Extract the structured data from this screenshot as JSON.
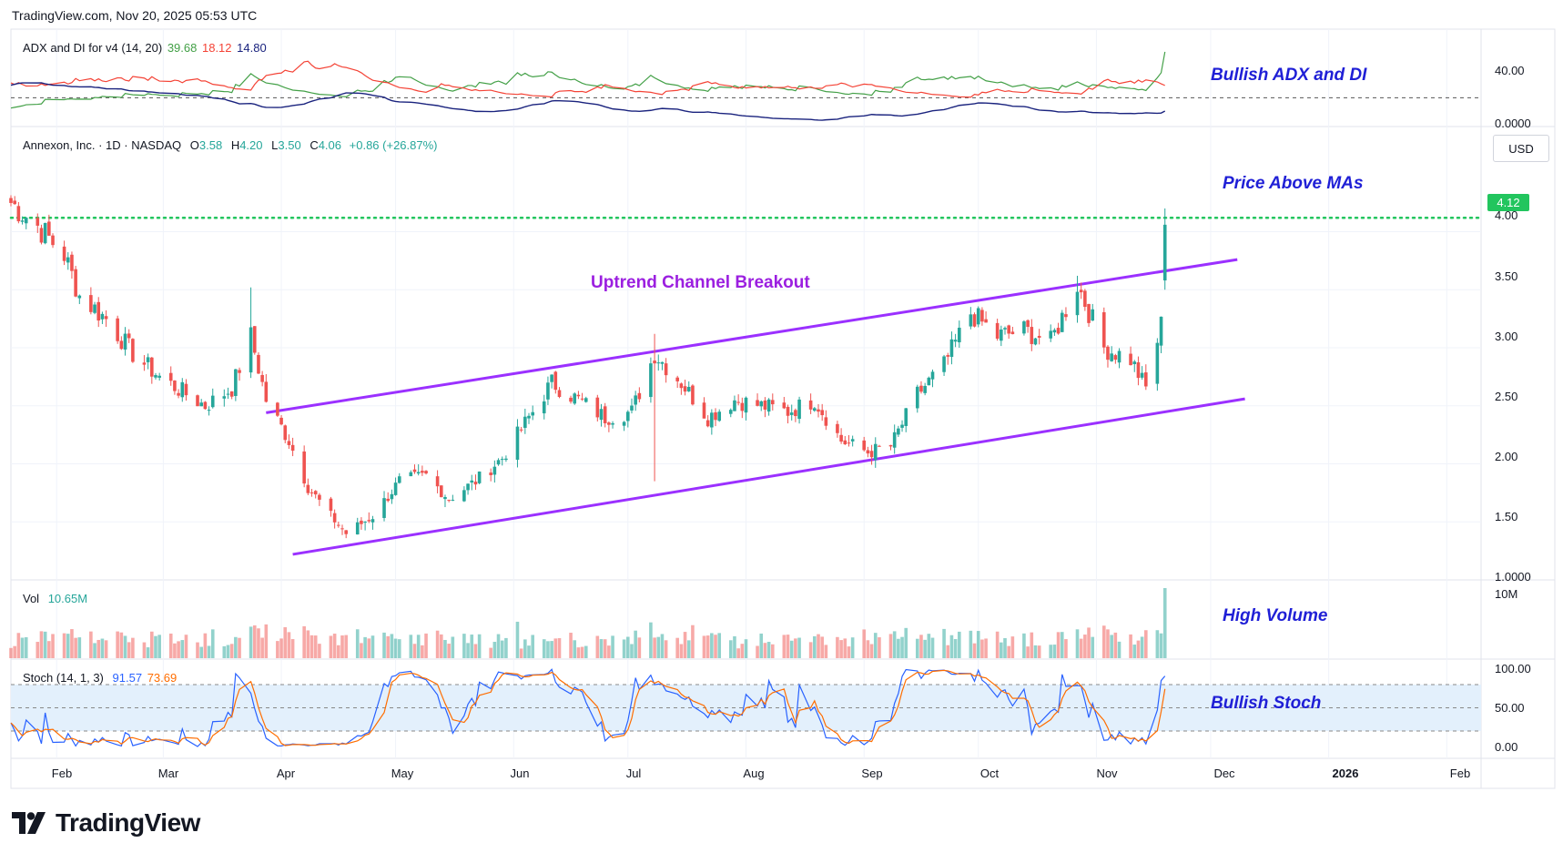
{
  "header": {
    "source": "TradingView.com, Nov 20, 2025 05:53 UTC"
  },
  "adx_pane": {
    "label": "ADX and DI for v4 (14, 20)",
    "plus_di": "39.68",
    "minus_di": "18.12",
    "adx": "14.80",
    "y_ticks": [
      "40.00",
      "0.0000"
    ],
    "annotation": "Bullish ADX and DI",
    "colors": {
      "plus_di": "#43a047",
      "minus_di": "#f44336",
      "adx": "#1a237e"
    }
  },
  "price_pane": {
    "symbol_line": "Annexon, Inc. · 1D · NASDAQ",
    "o_label": "O",
    "o": "3.58",
    "h_label": "H",
    "h": "4.20",
    "l_label": "L",
    "l": "3.50",
    "c_label": "C",
    "c": "4.06",
    "change": "+0.86 (+26.87%)",
    "currency": "USD",
    "last_price_tag": "4.12",
    "y_ticks": [
      "4.00",
      "3.50",
      "3.00",
      "2.50",
      "2.00",
      "1.50",
      "1.0000"
    ],
    "annotation_channel": "Uptrend Channel Breakout",
    "annotation_price": "Price Above MAs",
    "colors": {
      "up": "#26a69a",
      "down": "#ef5350",
      "channel": "#9b30ff",
      "resistance": "#22c55e"
    }
  },
  "volume_pane": {
    "label": "Vol",
    "value": "10.65M",
    "y_ticks": [
      "10M"
    ],
    "annotation": "High Volume"
  },
  "stoch_pane": {
    "label": "Stoch (14, 1, 3)",
    "k": "91.57",
    "d": "73.69",
    "y_ticks": [
      "100.00",
      "50.00",
      "0.00"
    ],
    "annotation": "Bullish Stoch",
    "colors": {
      "k": "#2962ff",
      "d": "#ff6d00",
      "band": "#e3f0fc"
    }
  },
  "time_axis": {
    "labels": [
      "Feb",
      "Mar",
      "Apr",
      "May",
      "Jun",
      "Jul",
      "Aug",
      "Sep",
      "Oct",
      "Nov",
      "Dec",
      "2026",
      "Feb"
    ]
  },
  "footer": {
    "brand": "TradingView"
  },
  "chart_data": {
    "type": "candlestick",
    "symbol": "Annexon, Inc.",
    "interval": "1D",
    "exchange": "NASDAQ",
    "ylim": [
      1.0,
      4.6
    ],
    "x_range": [
      "2025-01-20",
      "2026-02-10"
    ],
    "last_bar": {
      "date": "2025-11-19",
      "open": 3.58,
      "high": 4.2,
      "low": 3.5,
      "close": 4.06,
      "change": 0.86,
      "change_pct": 26.87
    },
    "resistance_level": 4.12,
    "channel": {
      "upper": [
        {
          "x": "2025-03-28",
          "y": 2.44
        },
        {
          "x": "2025-12-08",
          "y": 3.76
        }
      ],
      "lower": [
        {
          "x": "2025-04-04",
          "y": 1.22
        },
        {
          "x": "2025-12-10",
          "y": 2.56
        }
      ]
    },
    "price_path": [
      [
        "2025-01-20",
        4.25
      ],
      [
        "2025-01-27",
        4.05
      ],
      [
        "2025-02-03",
        3.8
      ],
      [
        "2025-02-07",
        3.45
      ],
      [
        "2025-02-14",
        3.25
      ],
      [
        "2025-02-21",
        2.95
      ],
      [
        "2025-02-28",
        2.75
      ],
      [
        "2025-03-07",
        2.6
      ],
      [
        "2025-03-12",
        2.5
      ],
      [
        "2025-03-19",
        2.65
      ],
      [
        "2025-03-24",
        3.1
      ],
      [
        "2025-03-28",
        2.55
      ],
      [
        "2025-04-03",
        2.2
      ],
      [
        "2025-04-08",
        1.8
      ],
      [
        "2025-04-14",
        1.55
      ],
      [
        "2025-04-18",
        1.4
      ],
      [
        "2025-04-25",
        1.55
      ],
      [
        "2025-05-02",
        1.85
      ],
      [
        "2025-05-09",
        1.9
      ],
      [
        "2025-05-15",
        1.7
      ],
      [
        "2025-05-22",
        1.85
      ],
      [
        "2025-05-29",
        2.05
      ],
      [
        "2025-06-05",
        2.4
      ],
      [
        "2025-06-11",
        2.7
      ],
      [
        "2025-06-18",
        2.55
      ],
      [
        "2025-06-25",
        2.4
      ],
      [
        "2025-07-02",
        2.45
      ],
      [
        "2025-07-08",
        2.95
      ],
      [
        "2025-07-15",
        2.7
      ],
      [
        "2025-07-22",
        2.4
      ],
      [
        "2025-07-29",
        2.55
      ],
      [
        "2025-08-05",
        2.5
      ],
      [
        "2025-08-12",
        2.45
      ],
      [
        "2025-08-19",
        2.55
      ],
      [
        "2025-08-26",
        2.2
      ],
      [
        "2025-09-02",
        2.1
      ],
      [
        "2025-09-08",
        2.15
      ],
      [
        "2025-09-15",
        2.6
      ],
      [
        "2025-09-22",
        2.85
      ],
      [
        "2025-09-29",
        3.3
      ],
      [
        "2025-10-06",
        3.1
      ],
      [
        "2025-10-13",
        3.15
      ],
      [
        "2025-10-20",
        3.05
      ],
      [
        "2025-10-27",
        3.55
      ],
      [
        "2025-11-03",
        3.0
      ],
      [
        "2025-11-10",
        2.9
      ],
      [
        "2025-11-14",
        2.65
      ],
      [
        "2025-11-18",
        3.2
      ],
      [
        "2025-11-19",
        4.06
      ]
    ]
  }
}
